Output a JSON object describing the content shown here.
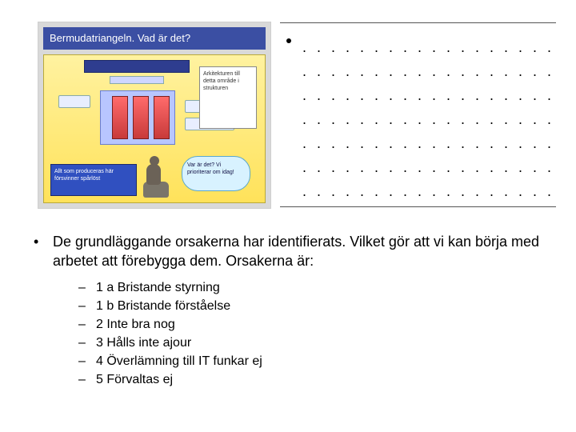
{
  "thumb": {
    "title": "Bermudatriangeln. Vad är det?",
    "callout": "Arkitekturen till detta område i strukturen",
    "bottom_left": "Allt som produceras här försvinner spårlöst",
    "cloud": "Var är det? Vi prioriterar om idag!"
  },
  "notes": {
    "dotline": ". . . . . . . . . . . . . . . . . . . . . . . .",
    "lines": 7
  },
  "main": {
    "intro": "De grundläggande orsakerna har identifierats. Vilket gör att vi kan börja med arbetet att förebygga dem. Orsakerna är:",
    "items": [
      "1 a Bristande styrning",
      "1 b Bristande förståelse",
      "2 Inte bra nog",
      "3 Hålls inte ajour",
      "4 Överlämning till IT funkar ej",
      "5 Förvaltas ej"
    ]
  }
}
